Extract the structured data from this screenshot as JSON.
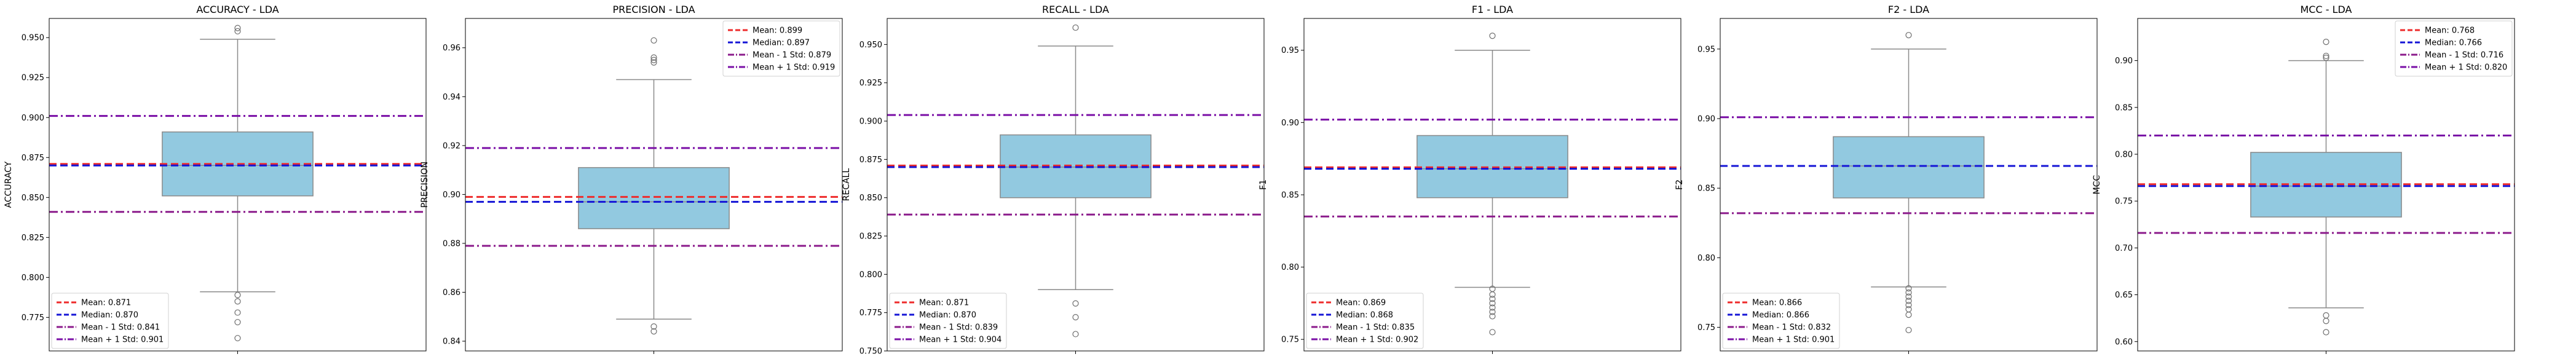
{
  "chart_data": [
    {
      "type": "boxplot",
      "title": "ACCURACY - LDA",
      "ylabel": "ACCURACY",
      "ylim": [
        0.754,
        0.962
      ],
      "yticks": [
        0.775,
        0.8,
        0.825,
        0.85,
        0.875,
        0.9,
        0.925,
        0.95
      ],
      "ytick_labels": [
        "0.775",
        "0.800",
        "0.825",
        "0.850",
        "0.875",
        "0.900",
        "0.925",
        "0.950"
      ],
      "box": {
        "whislo": 0.791,
        "q1": 0.851,
        "med": 0.87,
        "q3": 0.891,
        "whishi": 0.949
      },
      "fliers": [
        0.954,
        0.956,
        0.789,
        0.785,
        0.778,
        0.772,
        0.762
      ],
      "lines": {
        "mean": 0.871,
        "median": 0.87,
        "mean_minus_std": 0.841,
        "mean_plus_std": 0.901
      },
      "legend": {
        "position": "lower-left",
        "entries": [
          "Mean: 0.871",
          "Median: 0.870",
          "Mean - 1 Std: 0.841",
          "Mean + 1 Std: 0.901"
        ]
      }
    },
    {
      "type": "boxplot",
      "title": "PRECISION - LDA",
      "ylabel": "PRECISION",
      "ylim": [
        0.836,
        0.972
      ],
      "yticks": [
        0.84,
        0.86,
        0.88,
        0.9,
        0.92,
        0.94,
        0.96
      ],
      "ytick_labels": [
        "0.84",
        "0.86",
        "0.88",
        "0.90",
        "0.92",
        "0.94",
        "0.96"
      ],
      "box": {
        "whislo": 0.849,
        "q1": 0.886,
        "med": 0.897,
        "q3": 0.911,
        "whishi": 0.947
      },
      "fliers": [
        0.963,
        0.956,
        0.955,
        0.954,
        0.846,
        0.844
      ],
      "lines": {
        "mean": 0.899,
        "median": 0.897,
        "mean_minus_std": 0.879,
        "mean_plus_std": 0.919
      },
      "legend": {
        "position": "upper-right",
        "entries": [
          "Mean: 0.899",
          "Median: 0.897",
          "Mean - 1 Std: 0.879",
          "Mean + 1 Std: 0.919"
        ]
      }
    },
    {
      "type": "boxplot",
      "title": "RECALL - LDA",
      "ylabel": "RECALL",
      "ylim": [
        0.75,
        0.967
      ],
      "yticks": [
        0.75,
        0.775,
        0.8,
        0.825,
        0.85,
        0.875,
        0.9,
        0.925,
        0.95
      ],
      "ytick_labels": [
        "0.750",
        "0.775",
        "0.800",
        "0.825",
        "0.850",
        "0.875",
        "0.900",
        "0.925",
        "0.950"
      ],
      "box": {
        "whislo": 0.79,
        "q1": 0.85,
        "med": 0.87,
        "q3": 0.891,
        "whishi": 0.949
      },
      "fliers": [
        0.961,
        0.781,
        0.772,
        0.761
      ],
      "lines": {
        "mean": 0.871,
        "median": 0.87,
        "mean_minus_std": 0.839,
        "mean_plus_std": 0.904
      },
      "legend": {
        "position": "lower-left",
        "entries": [
          "Mean: 0.871",
          "Median: 0.870",
          "Mean - 1 Std: 0.839",
          "Mean + 1 Std: 0.904"
        ]
      }
    },
    {
      "type": "boxplot",
      "title": "F1 - LDA",
      "ylabel": "F1",
      "ylim": [
        0.742,
        0.972
      ],
      "yticks": [
        0.75,
        0.8,
        0.85,
        0.9,
        0.95
      ],
      "ytick_labels": [
        "0.75",
        "0.80",
        "0.85",
        "0.90",
        "0.95"
      ],
      "box": {
        "whislo": 0.786,
        "q1": 0.848,
        "med": 0.868,
        "q3": 0.891,
        "whishi": 0.95
      },
      "fliers": [
        0.96,
        0.785,
        0.781,
        0.778,
        0.775,
        0.772,
        0.769,
        0.766,
        0.755
      ],
      "lines": {
        "mean": 0.869,
        "median": 0.868,
        "mean_minus_std": 0.835,
        "mean_plus_std": 0.902
      },
      "legend": {
        "position": "lower-left",
        "entries": [
          "Mean: 0.869",
          "Median: 0.868",
          "Mean - 1 Std: 0.835",
          "Mean + 1 Std: 0.902"
        ]
      }
    },
    {
      "type": "boxplot",
      "title": "F2 - LDA",
      "ylabel": "F2",
      "ylim": [
        0.733,
        0.972
      ],
      "yticks": [
        0.75,
        0.8,
        0.85,
        0.9,
        0.95
      ],
      "ytick_labels": [
        "0.75",
        "0.80",
        "0.85",
        "0.90",
        "0.95"
      ],
      "box": {
        "whislo": 0.779,
        "q1": 0.843,
        "med": 0.866,
        "q3": 0.887,
        "whishi": 0.95
      },
      "fliers": [
        0.96,
        0.778,
        0.775,
        0.772,
        0.769,
        0.766,
        0.763,
        0.759,
        0.748
      ],
      "lines": {
        "mean": 0.866,
        "median": 0.866,
        "mean_minus_std": 0.832,
        "mean_plus_std": 0.901
      },
      "legend": {
        "position": "lower-left",
        "entries": [
          "Mean: 0.866",
          "Median: 0.866",
          "Mean - 1 Std: 0.832",
          "Mean + 1 Std: 0.901"
        ]
      }
    },
    {
      "type": "boxplot",
      "title": "MCC - LDA",
      "ylabel": "MCC",
      "ylim": [
        0.59,
        0.945
      ],
      "yticks": [
        0.6,
        0.65,
        0.7,
        0.75,
        0.8,
        0.85,
        0.9
      ],
      "ytick_labels": [
        "0.60",
        "0.65",
        "0.70",
        "0.75",
        "0.80",
        "0.85",
        "0.90"
      ],
      "box": {
        "whislo": 0.636,
        "q1": 0.733,
        "med": 0.766,
        "q3": 0.802,
        "whishi": 0.9
      },
      "fliers": [
        0.92,
        0.905,
        0.903,
        0.628,
        0.622,
        0.61
      ],
      "lines": {
        "mean": 0.768,
        "median": 0.766,
        "mean_minus_std": 0.716,
        "mean_plus_std": 0.82
      },
      "legend": {
        "position": "upper-right",
        "entries": [
          "Mean: 0.768",
          "Median: 0.766",
          "Mean - 1 Std: 0.716",
          "Mean + 1 Std: 0.820"
        ]
      }
    }
  ],
  "colors": {
    "box_fill": "#92c9e0",
    "box_edge": "#8a8a8a",
    "mean_line": "#ee2b2b",
    "median_line": "#1515d6",
    "mean_minus_std_line": "#8b1a8b",
    "mean_plus_std_line": "#7a0fa6"
  }
}
